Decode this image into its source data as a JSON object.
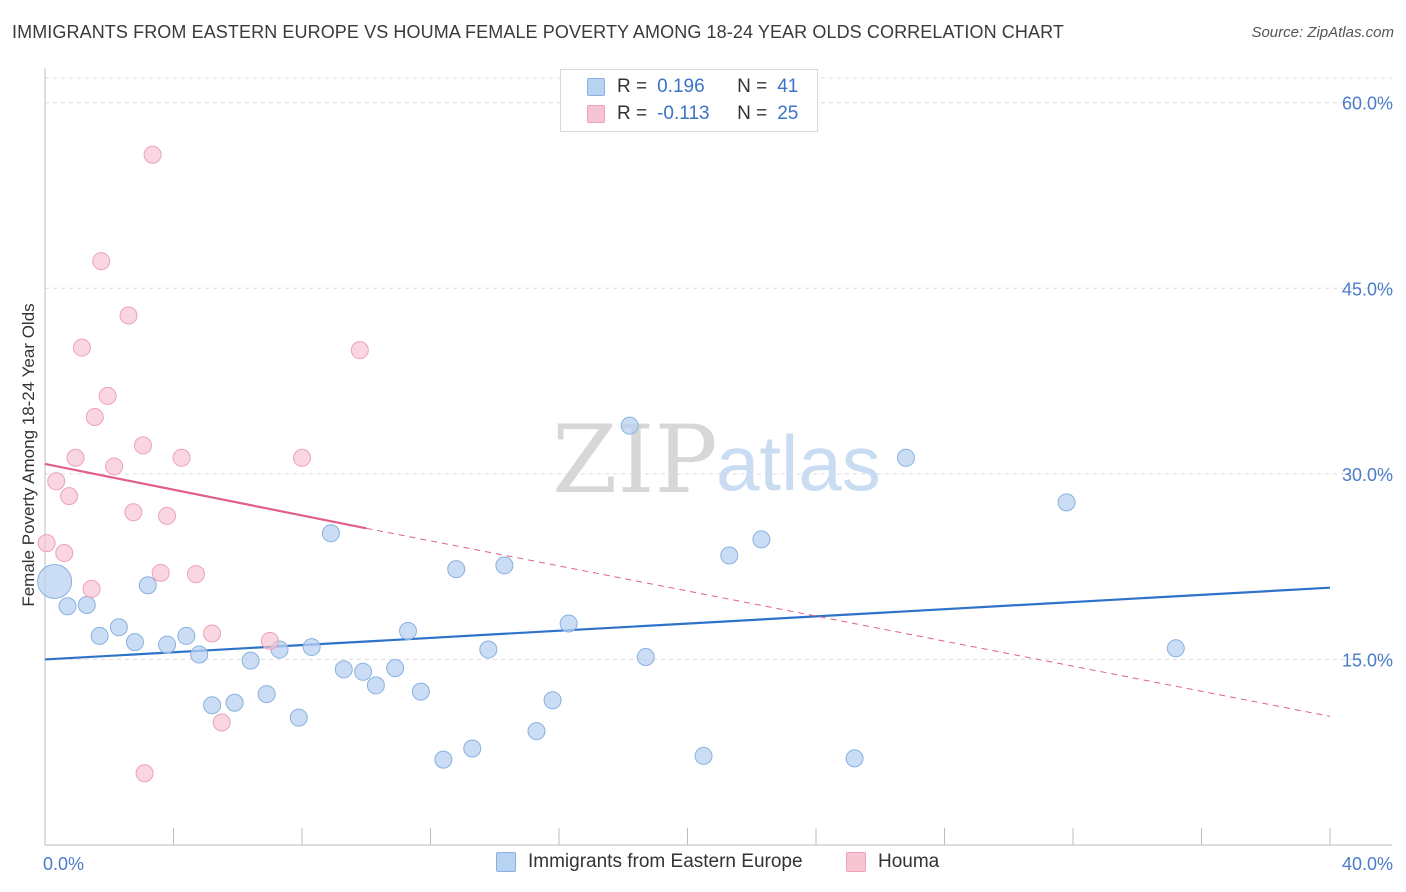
{
  "title": "IMMIGRANTS FROM EASTERN EUROPE VS HOUMA FEMALE POVERTY AMONG 18-24 YEAR OLDS CORRELATION CHART",
  "source": "Source: ZipAtlas.com",
  "watermark": {
    "zip": "ZIP",
    "atlas": "atlas"
  },
  "legend": {
    "rows": [
      {
        "r_label": "R =",
        "r_value": "0.196",
        "n_label": "N =",
        "n_value": "41"
      },
      {
        "r_label": "R =",
        "r_value": "-0.113",
        "n_label": "N =",
        "n_value": "25"
      }
    ]
  },
  "colors": {
    "blue_fill": "#b8d2f2",
    "blue_stroke": "#8ab0e0",
    "blue_line": "#2f72c9",
    "pink_fill": "#f7c4d3",
    "pink_stroke": "#eda2ba",
    "pink_line": "#e0608a",
    "axis_text": "#4a7cc9",
    "grid": "#dcdcdc"
  },
  "chart_data": {
    "type": "scatter",
    "title": "IMMIGRANTS FROM EASTERN EUROPE VS HOUMA FEMALE POVERTY AMONG 18-24 YEAR OLDS CORRELATION CHART",
    "xlabel": "",
    "ylabel": "Female Poverty Among 18-24 Year Olds",
    "xlim": [
      0,
      40
    ],
    "ylim": [
      0,
      62
    ],
    "x_tick_labels": [
      "0.0%",
      "40.0%"
    ],
    "y_ticks": [
      15,
      30,
      45,
      60
    ],
    "y_tick_labels": [
      "15.0%",
      "30.0%",
      "45.0%",
      "60.0%"
    ],
    "grid": true,
    "series": [
      {
        "name": "Immigrants from Eastern Europe",
        "color": "blue",
        "points": [
          {
            "x": 0.3,
            "y": 21.3,
            "big": true
          },
          {
            "x": 0.7,
            "y": 19.3
          },
          {
            "x": 1.3,
            "y": 19.4
          },
          {
            "x": 1.7,
            "y": 16.9
          },
          {
            "x": 2.3,
            "y": 17.6
          },
          {
            "x": 2.8,
            "y": 16.4
          },
          {
            "x": 3.2,
            "y": 21.0
          },
          {
            "x": 3.8,
            "y": 16.2
          },
          {
            "x": 4.4,
            "y": 16.9
          },
          {
            "x": 4.8,
            "y": 15.4
          },
          {
            "x": 5.2,
            "y": 11.3
          },
          {
            "x": 5.9,
            "y": 11.5
          },
          {
            "x": 6.4,
            "y": 14.9
          },
          {
            "x": 6.9,
            "y": 12.2
          },
          {
            "x": 7.3,
            "y": 15.8
          },
          {
            "x": 7.9,
            "y": 10.3
          },
          {
            "x": 8.3,
            "y": 16.0
          },
          {
            "x": 8.9,
            "y": 25.2
          },
          {
            "x": 9.3,
            "y": 14.2
          },
          {
            "x": 9.9,
            "y": 14.0
          },
          {
            "x": 10.3,
            "y": 12.9
          },
          {
            "x": 10.9,
            "y": 14.3
          },
          {
            "x": 11.3,
            "y": 17.3
          },
          {
            "x": 11.7,
            "y": 12.4
          },
          {
            "x": 12.4,
            "y": 6.9
          },
          {
            "x": 12.8,
            "y": 22.3
          },
          {
            "x": 13.3,
            "y": 7.8
          },
          {
            "x": 13.8,
            "y": 15.8
          },
          {
            "x": 14.3,
            "y": 22.6
          },
          {
            "x": 15.3,
            "y": 9.2
          },
          {
            "x": 15.8,
            "y": 11.7
          },
          {
            "x": 16.3,
            "y": 17.9
          },
          {
            "x": 18.2,
            "y": 33.9
          },
          {
            "x": 18.7,
            "y": 15.2
          },
          {
            "x": 20.5,
            "y": 7.2
          },
          {
            "x": 21.3,
            "y": 23.4
          },
          {
            "x": 22.3,
            "y": 24.7
          },
          {
            "x": 25.2,
            "y": 7.0
          },
          {
            "x": 26.8,
            "y": 31.3
          },
          {
            "x": 31.8,
            "y": 27.7
          },
          {
            "x": 35.2,
            "y": 15.9
          }
        ]
      },
      {
        "name": "Houma",
        "color": "pink",
        "points": [
          {
            "x": 0.05,
            "y": 24.4
          },
          {
            "x": 0.35,
            "y": 29.4
          },
          {
            "x": 0.6,
            "y": 23.6
          },
          {
            "x": 0.75,
            "y": 28.2
          },
          {
            "x": 0.95,
            "y": 31.3
          },
          {
            "x": 1.15,
            "y": 40.2
          },
          {
            "x": 1.45,
            "y": 20.7
          },
          {
            "x": 1.55,
            "y": 34.6
          },
          {
            "x": 1.75,
            "y": 47.2
          },
          {
            "x": 1.95,
            "y": 36.3
          },
          {
            "x": 2.15,
            "y": 30.6
          },
          {
            "x": 2.6,
            "y": 42.8
          },
          {
            "x": 2.75,
            "y": 26.9
          },
          {
            "x": 3.05,
            "y": 32.3
          },
          {
            "x": 3.1,
            "y": 5.8
          },
          {
            "x": 3.35,
            "y": 55.8
          },
          {
            "x": 3.6,
            "y": 22.0
          },
          {
            "x": 3.8,
            "y": 26.6
          },
          {
            "x": 4.25,
            "y": 31.3
          },
          {
            "x": 4.7,
            "y": 21.9
          },
          {
            "x": 5.2,
            "y": 17.1
          },
          {
            "x": 5.5,
            "y": 9.9
          },
          {
            "x": 7.0,
            "y": 16.5
          },
          {
            "x": 8.0,
            "y": 31.3
          },
          {
            "x": 9.8,
            "y": 40.0
          }
        ]
      }
    ],
    "trendlines": [
      {
        "series": "Immigrants from Eastern Europe",
        "x_start": 0,
        "y_start": 15.0,
        "x_end": 40,
        "y_end": 20.8,
        "style": "solid"
      },
      {
        "series": "Houma",
        "x_start": 0,
        "y_start": 30.8,
        "x_end": 10.0,
        "y_end": 25.6,
        "style": "solid"
      },
      {
        "series": "Houma",
        "x_start": 10.0,
        "y_start": 25.6,
        "x_end": 40,
        "y_end": 10.4,
        "style": "dashed"
      }
    ],
    "legend_entries": [
      "Immigrants from Eastern Europe",
      "Houma"
    ]
  }
}
